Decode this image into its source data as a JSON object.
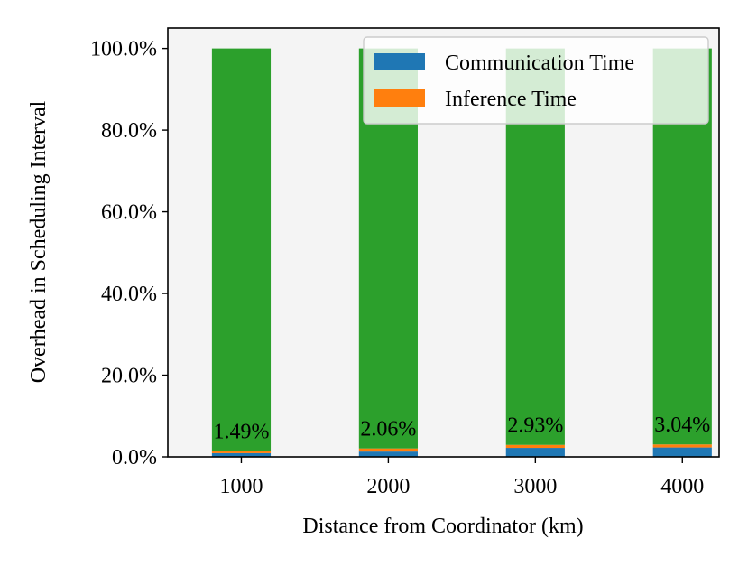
{
  "chart_data": {
    "type": "bar",
    "stacked": true,
    "categories": [
      "1000",
      "2000",
      "3000",
      "4000"
    ],
    "series": [
      {
        "name": "Communication Time",
        "color": "#1f77b4",
        "values": [
          0.9,
          1.3,
          2.2,
          2.3
        ]
      },
      {
        "name": "Inference Time",
        "color": "#ff7f0e",
        "values": [
          0.59,
          0.76,
          0.73,
          0.74
        ]
      },
      {
        "name": "",
        "color": "#2ca02c",
        "values": [
          98.51,
          97.94,
          97.07,
          96.96
        ]
      }
    ],
    "bar_labels": [
      "1.49%",
      "2.06%",
      "2.93%",
      "3.04%"
    ],
    "xlabel": "Distance from Coordinator (km)",
    "ylabel": "Overhead in Scheduling Interval",
    "ylim": [
      0,
      105
    ],
    "yticks": [
      0,
      20,
      40,
      60,
      80,
      100
    ],
    "ytick_labels": [
      "0.0%",
      "20.0%",
      "40.0%",
      "60.0%",
      "80.0%",
      "100.0%"
    ],
    "legend_position": "top-right",
    "plot_background": "#f4f4f4",
    "grid": false
  }
}
